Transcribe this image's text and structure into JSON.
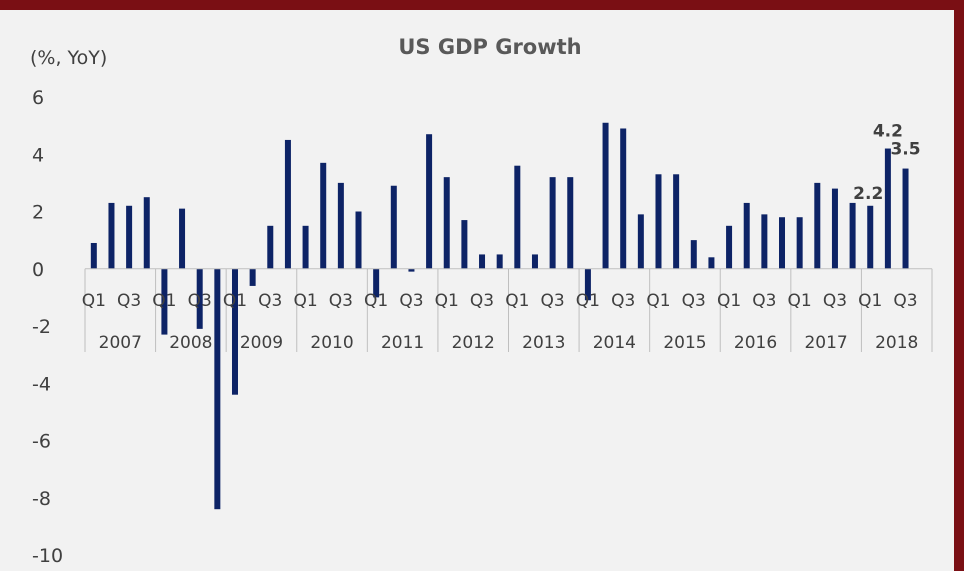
{
  "chart_data": {
    "type": "bar",
    "title": "US GDP Growth",
    "ylabel": "(%, YoY)",
    "xlabel": "",
    "ylim": [
      -10,
      6
    ],
    "yticks": [
      6,
      4,
      2,
      0,
      -2,
      -4,
      -6,
      -8,
      -10
    ],
    "grid": false,
    "legend": "none",
    "bar_color": "#0d2366",
    "years": [
      "2007",
      "2008",
      "2009",
      "2010",
      "2011",
      "2012",
      "2013",
      "2014",
      "2015",
      "2016",
      "2017",
      "2018"
    ],
    "quarter_tick_labels": [
      "Q1",
      "Q3"
    ],
    "categories": [
      "2007 Q1",
      "2007 Q2",
      "2007 Q3",
      "2007 Q4",
      "2008 Q1",
      "2008 Q2",
      "2008 Q3",
      "2008 Q4",
      "2009 Q1",
      "2009 Q2",
      "2009 Q3",
      "2009 Q4",
      "2010 Q1",
      "2010 Q2",
      "2010 Q3",
      "2010 Q4",
      "2011 Q1",
      "2011 Q2",
      "2011 Q3",
      "2011 Q4",
      "2012 Q1",
      "2012 Q2",
      "2012 Q3",
      "2012 Q4",
      "2013 Q1",
      "2013 Q2",
      "2013 Q3",
      "2013 Q4",
      "2014 Q1",
      "2014 Q2",
      "2014 Q3",
      "2014 Q4",
      "2015 Q1",
      "2015 Q2",
      "2015 Q3",
      "2015 Q4",
      "2016 Q1",
      "2016 Q2",
      "2016 Q3",
      "2016 Q4",
      "2017 Q1",
      "2017 Q2",
      "2017 Q3",
      "2017 Q4",
      "2018 Q1",
      "2018 Q2",
      "2018 Q3"
    ],
    "values": [
      0.9,
      2.3,
      2.2,
      2.5,
      -2.3,
      2.1,
      -2.1,
      -8.4,
      -4.4,
      -0.6,
      1.5,
      4.5,
      1.5,
      3.7,
      3.0,
      2.0,
      -1.0,
      2.9,
      -0.1,
      4.7,
      3.2,
      1.7,
      0.5,
      0.5,
      3.6,
      0.5,
      3.2,
      3.2,
      -1.1,
      5.1,
      4.9,
      1.9,
      3.3,
      3.3,
      1.0,
      0.4,
      1.5,
      2.3,
      1.9,
      1.8,
      1.8,
      3.0,
      2.8,
      2.3,
      2.2,
      4.2,
      3.5
    ],
    "data_labels": [
      {
        "index": 44,
        "text": "2.2"
      },
      {
        "index": 45,
        "text": "4.2"
      },
      {
        "index": 46,
        "text": "3.5"
      }
    ]
  }
}
